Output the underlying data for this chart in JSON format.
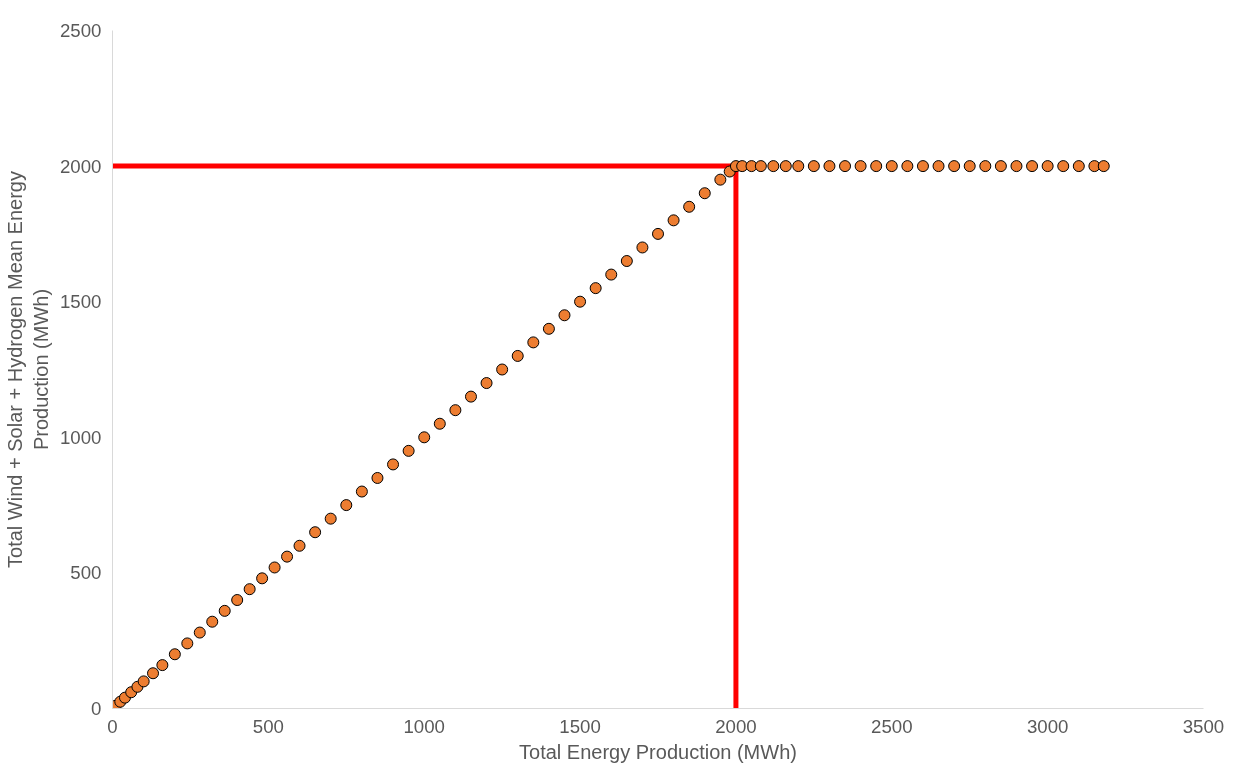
{
  "chart_data": {
    "type": "scatter",
    "xlabel": "Total Energy Production (MWh)",
    "ylabel": "Total Wind + Solar + Hydrogen Mean Energy Production (MWh)",
    "xlim": [
      0,
      3500
    ],
    "ylim": [
      0,
      2500
    ],
    "xticks": [
      0,
      500,
      1000,
      1500,
      2000,
      2500,
      3000,
      3500
    ],
    "yticks": [
      0,
      500,
      1000,
      1500,
      2000,
      2500
    ],
    "grid": false,
    "marker": "circle",
    "series": [
      {
        "color": "#ed7d31",
        "x": [
          10,
          25,
          40,
          60,
          80,
          100,
          130,
          160,
          200,
          240,
          280,
          320,
          360,
          400,
          440,
          480,
          520,
          560,
          600,
          650,
          700,
          750,
          800,
          850,
          900,
          950,
          1000,
          1050,
          1100,
          1150,
          1200,
          1250,
          1300,
          1350,
          1400,
          1450,
          1500,
          1550,
          1600,
          1650,
          1700,
          1750,
          1800,
          1850,
          1900,
          1950,
          1980,
          2000,
          2020,
          2050,
          2080,
          2120,
          2160,
          2200,
          2250,
          2300,
          2350,
          2400,
          2450,
          2500,
          2550,
          2600,
          2650,
          2700,
          2750,
          2800,
          2850,
          2900,
          2950,
          3000,
          3050,
          3100,
          3150,
          3180
        ],
        "values": [
          10,
          25,
          40,
          60,
          80,
          100,
          130,
          160,
          200,
          240,
          280,
          320,
          360,
          400,
          440,
          480,
          520,
          560,
          600,
          650,
          700,
          750,
          800,
          850,
          900,
          950,
          1000,
          1050,
          1100,
          1150,
          1200,
          1250,
          1300,
          1350,
          1400,
          1450,
          1500,
          1550,
          1600,
          1650,
          1700,
          1750,
          1800,
          1850,
          1900,
          1950,
          1980,
          2000,
          2000,
          2000,
          2000,
          2000,
          2000,
          2000,
          2000,
          2000,
          2000,
          2000,
          2000,
          2000,
          2000,
          2000,
          2000,
          2000,
          2000,
          2000,
          2000,
          2000,
          2000,
          2000,
          2000,
          2000,
          2000,
          2000
        ]
      },
      {
        "type": "line",
        "marker": "none",
        "color": "#ff0000",
        "x": [
          0,
          2000,
          2000
        ],
        "values": [
          2000,
          2000,
          0
        ]
      }
    ]
  }
}
